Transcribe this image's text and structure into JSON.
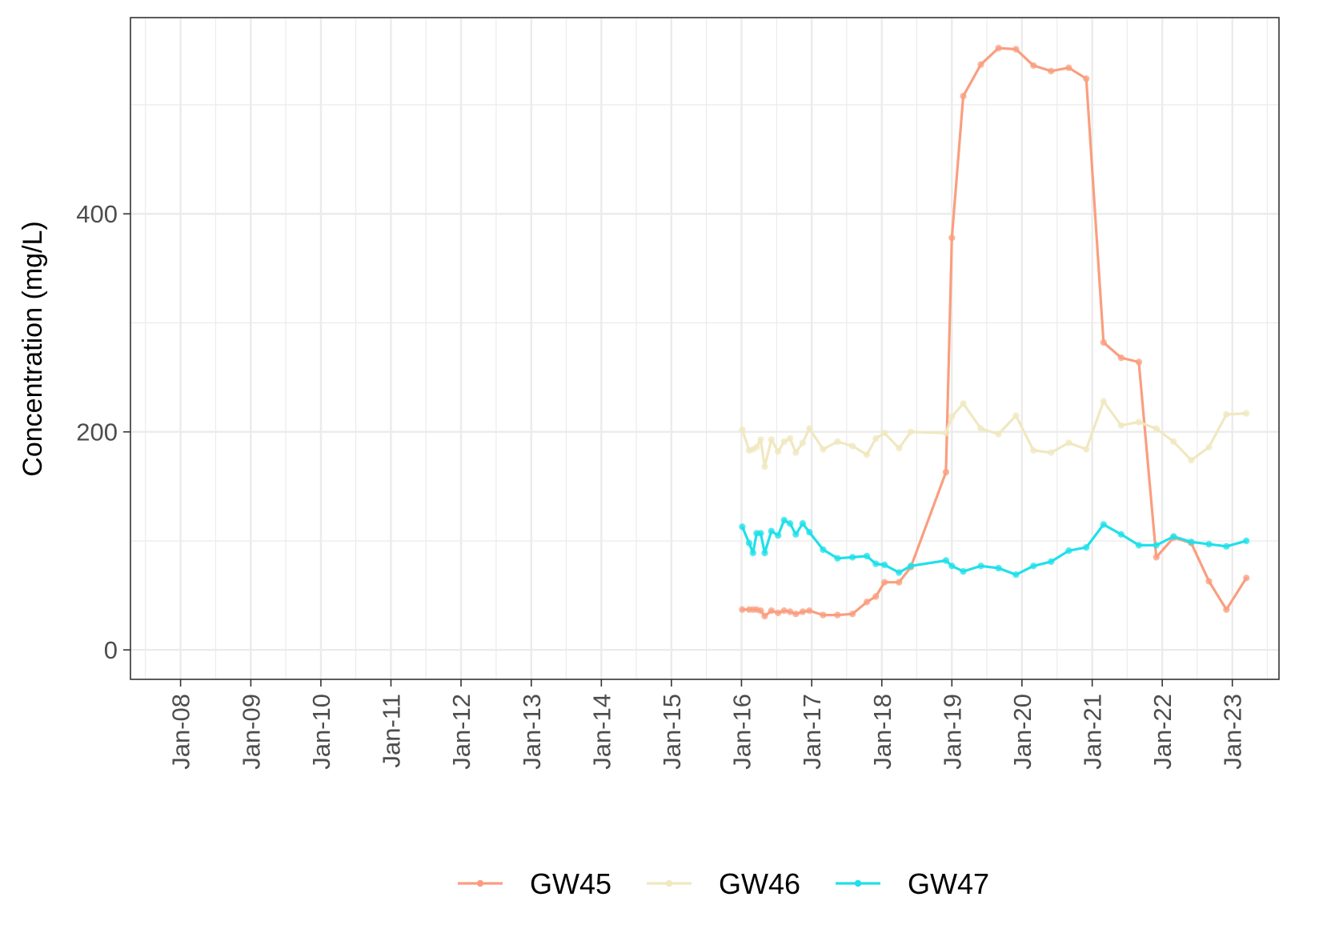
{
  "chart_data": {
    "type": "line",
    "title": "",
    "xlabel": "",
    "ylabel": "Concentration (mg/L)",
    "x_type": "date",
    "xlim": [
      "2007-04-15",
      "2023-09-01"
    ],
    "ylim": [
      -27,
      580
    ],
    "x_ticks": [
      {
        "date": "2008-01-01",
        "label": "Jan-08"
      },
      {
        "date": "2009-01-01",
        "label": "Jan-09"
      },
      {
        "date": "2010-01-01",
        "label": "Jan-10"
      },
      {
        "date": "2011-01-01",
        "label": "Jan-11"
      },
      {
        "date": "2012-01-01",
        "label": "Jan-12"
      },
      {
        "date": "2013-01-01",
        "label": "Jan-13"
      },
      {
        "date": "2014-01-01",
        "label": "Jan-14"
      },
      {
        "date": "2015-01-01",
        "label": "Jan-15"
      },
      {
        "date": "2016-01-01",
        "label": "Jan-16"
      },
      {
        "date": "2017-01-01",
        "label": "Jan-17"
      },
      {
        "date": "2018-01-01",
        "label": "Jan-18"
      },
      {
        "date": "2019-01-01",
        "label": "Jan-19"
      },
      {
        "date": "2020-01-01",
        "label": "Jan-20"
      },
      {
        "date": "2021-01-01",
        "label": "Jan-21"
      },
      {
        "date": "2022-01-01",
        "label": "Jan-22"
      },
      {
        "date": "2023-01-01",
        "label": "Jan-23"
      }
    ],
    "y_ticks": [
      0,
      200,
      400
    ],
    "y_minor_ticks": [
      100,
      300,
      500
    ],
    "grid": true,
    "legend_position": "bottom",
    "series": [
      {
        "name": "GW45",
        "color": "#fa9e7f",
        "points": [
          [
            "2016-01-05",
            37
          ],
          [
            "2016-02-10",
            37
          ],
          [
            "2016-03-01",
            37
          ],
          [
            "2016-03-20",
            37
          ],
          [
            "2016-04-10",
            36
          ],
          [
            "2016-05-01",
            31
          ],
          [
            "2016-06-05",
            36
          ],
          [
            "2016-07-10",
            34
          ],
          [
            "2016-08-10",
            36
          ],
          [
            "2016-09-10",
            35
          ],
          [
            "2016-10-10",
            33
          ],
          [
            "2016-11-15",
            35
          ],
          [
            "2016-12-20",
            36
          ],
          [
            "2017-03-01",
            32
          ],
          [
            "2017-05-15",
            32
          ],
          [
            "2017-08-01",
            33
          ],
          [
            "2017-10-15",
            44
          ],
          [
            "2017-12-01",
            49
          ],
          [
            "2018-01-15",
            62
          ],
          [
            "2018-04-01",
            62
          ],
          [
            "2018-06-01",
            76
          ],
          [
            "2018-12-01",
            163
          ],
          [
            "2019-01-01",
            378
          ],
          [
            "2019-03-01",
            508
          ],
          [
            "2019-06-01",
            537
          ],
          [
            "2019-09-01",
            552
          ],
          [
            "2019-12-01",
            551
          ],
          [
            "2020-03-01",
            536
          ],
          [
            "2020-06-01",
            531
          ],
          [
            "2020-09-01",
            534
          ],
          [
            "2020-12-01",
            524
          ],
          [
            "2021-03-01",
            282
          ],
          [
            "2021-06-01",
            268
          ],
          [
            "2021-09-01",
            264
          ],
          [
            "2021-12-01",
            85
          ],
          [
            "2022-03-01",
            103
          ],
          [
            "2022-06-01",
            98
          ],
          [
            "2022-09-01",
            63
          ],
          [
            "2022-12-01",
            37
          ],
          [
            "2023-03-15",
            66
          ]
        ]
      },
      {
        "name": "GW46",
        "color": "#f0e8c0",
        "points": [
          [
            "2016-01-05",
            202
          ],
          [
            "2016-02-10",
            183
          ],
          [
            "2016-03-01",
            184
          ],
          [
            "2016-03-20",
            186
          ],
          [
            "2016-04-10",
            193
          ],
          [
            "2016-05-01",
            168
          ],
          [
            "2016-06-05",
            193
          ],
          [
            "2016-07-10",
            182
          ],
          [
            "2016-08-10",
            191
          ],
          [
            "2016-09-10",
            194
          ],
          [
            "2016-10-10",
            181
          ],
          [
            "2016-11-15",
            190
          ],
          [
            "2016-12-20",
            203
          ],
          [
            "2017-03-01",
            184
          ],
          [
            "2017-05-15",
            191
          ],
          [
            "2017-08-01",
            187
          ],
          [
            "2017-10-15",
            179
          ],
          [
            "2017-12-01",
            194
          ],
          [
            "2018-01-15",
            199
          ],
          [
            "2018-04-01",
            185
          ],
          [
            "2018-06-01",
            200
          ],
          [
            "2018-12-01",
            199
          ],
          [
            "2019-01-01",
            214
          ],
          [
            "2019-03-01",
            226
          ],
          [
            "2019-06-01",
            203
          ],
          [
            "2019-09-01",
            198
          ],
          [
            "2019-12-01",
            215
          ],
          [
            "2020-03-01",
            183
          ],
          [
            "2020-06-01",
            181
          ],
          [
            "2020-09-01",
            190
          ],
          [
            "2020-12-01",
            184
          ],
          [
            "2021-03-01",
            228
          ],
          [
            "2021-06-01",
            206
          ],
          [
            "2021-09-01",
            209
          ],
          [
            "2021-12-01",
            203
          ],
          [
            "2022-03-01",
            191
          ],
          [
            "2022-06-01",
            174
          ],
          [
            "2022-09-01",
            186
          ],
          [
            "2022-12-01",
            216
          ],
          [
            "2023-03-15",
            217
          ]
        ]
      },
      {
        "name": "GW47",
        "color": "#1fe0ea",
        "points": [
          [
            "2016-01-05",
            113
          ],
          [
            "2016-02-10",
            98
          ],
          [
            "2016-03-01",
            89
          ],
          [
            "2016-03-20",
            107
          ],
          [
            "2016-04-10",
            107
          ],
          [
            "2016-05-01",
            89
          ],
          [
            "2016-06-05",
            109
          ],
          [
            "2016-07-10",
            105
          ],
          [
            "2016-08-10",
            119
          ],
          [
            "2016-09-10",
            116
          ],
          [
            "2016-10-10",
            106
          ],
          [
            "2016-11-15",
            116
          ],
          [
            "2016-12-20",
            108
          ],
          [
            "2017-03-01",
            92
          ],
          [
            "2017-05-15",
            84
          ],
          [
            "2017-08-01",
            85
          ],
          [
            "2017-10-15",
            86
          ],
          [
            "2017-12-01",
            79
          ],
          [
            "2018-01-15",
            78
          ],
          [
            "2018-04-01",
            71
          ],
          [
            "2018-06-01",
            77
          ],
          [
            "2018-12-01",
            82
          ],
          [
            "2019-01-01",
            77
          ],
          [
            "2019-03-01",
            72
          ],
          [
            "2019-06-01",
            77
          ],
          [
            "2019-09-01",
            75
          ],
          [
            "2019-12-01",
            69
          ],
          [
            "2020-03-01",
            77
          ],
          [
            "2020-06-01",
            81
          ],
          [
            "2020-09-01",
            91
          ],
          [
            "2020-12-01",
            94
          ],
          [
            "2021-03-01",
            115
          ],
          [
            "2021-06-01",
            106
          ],
          [
            "2021-09-01",
            96
          ],
          [
            "2021-12-01",
            96
          ],
          [
            "2022-03-01",
            104
          ],
          [
            "2022-06-01",
            99
          ],
          [
            "2022-09-01",
            97
          ],
          [
            "2022-12-01",
            95
          ],
          [
            "2023-03-15",
            100
          ]
        ]
      }
    ]
  }
}
